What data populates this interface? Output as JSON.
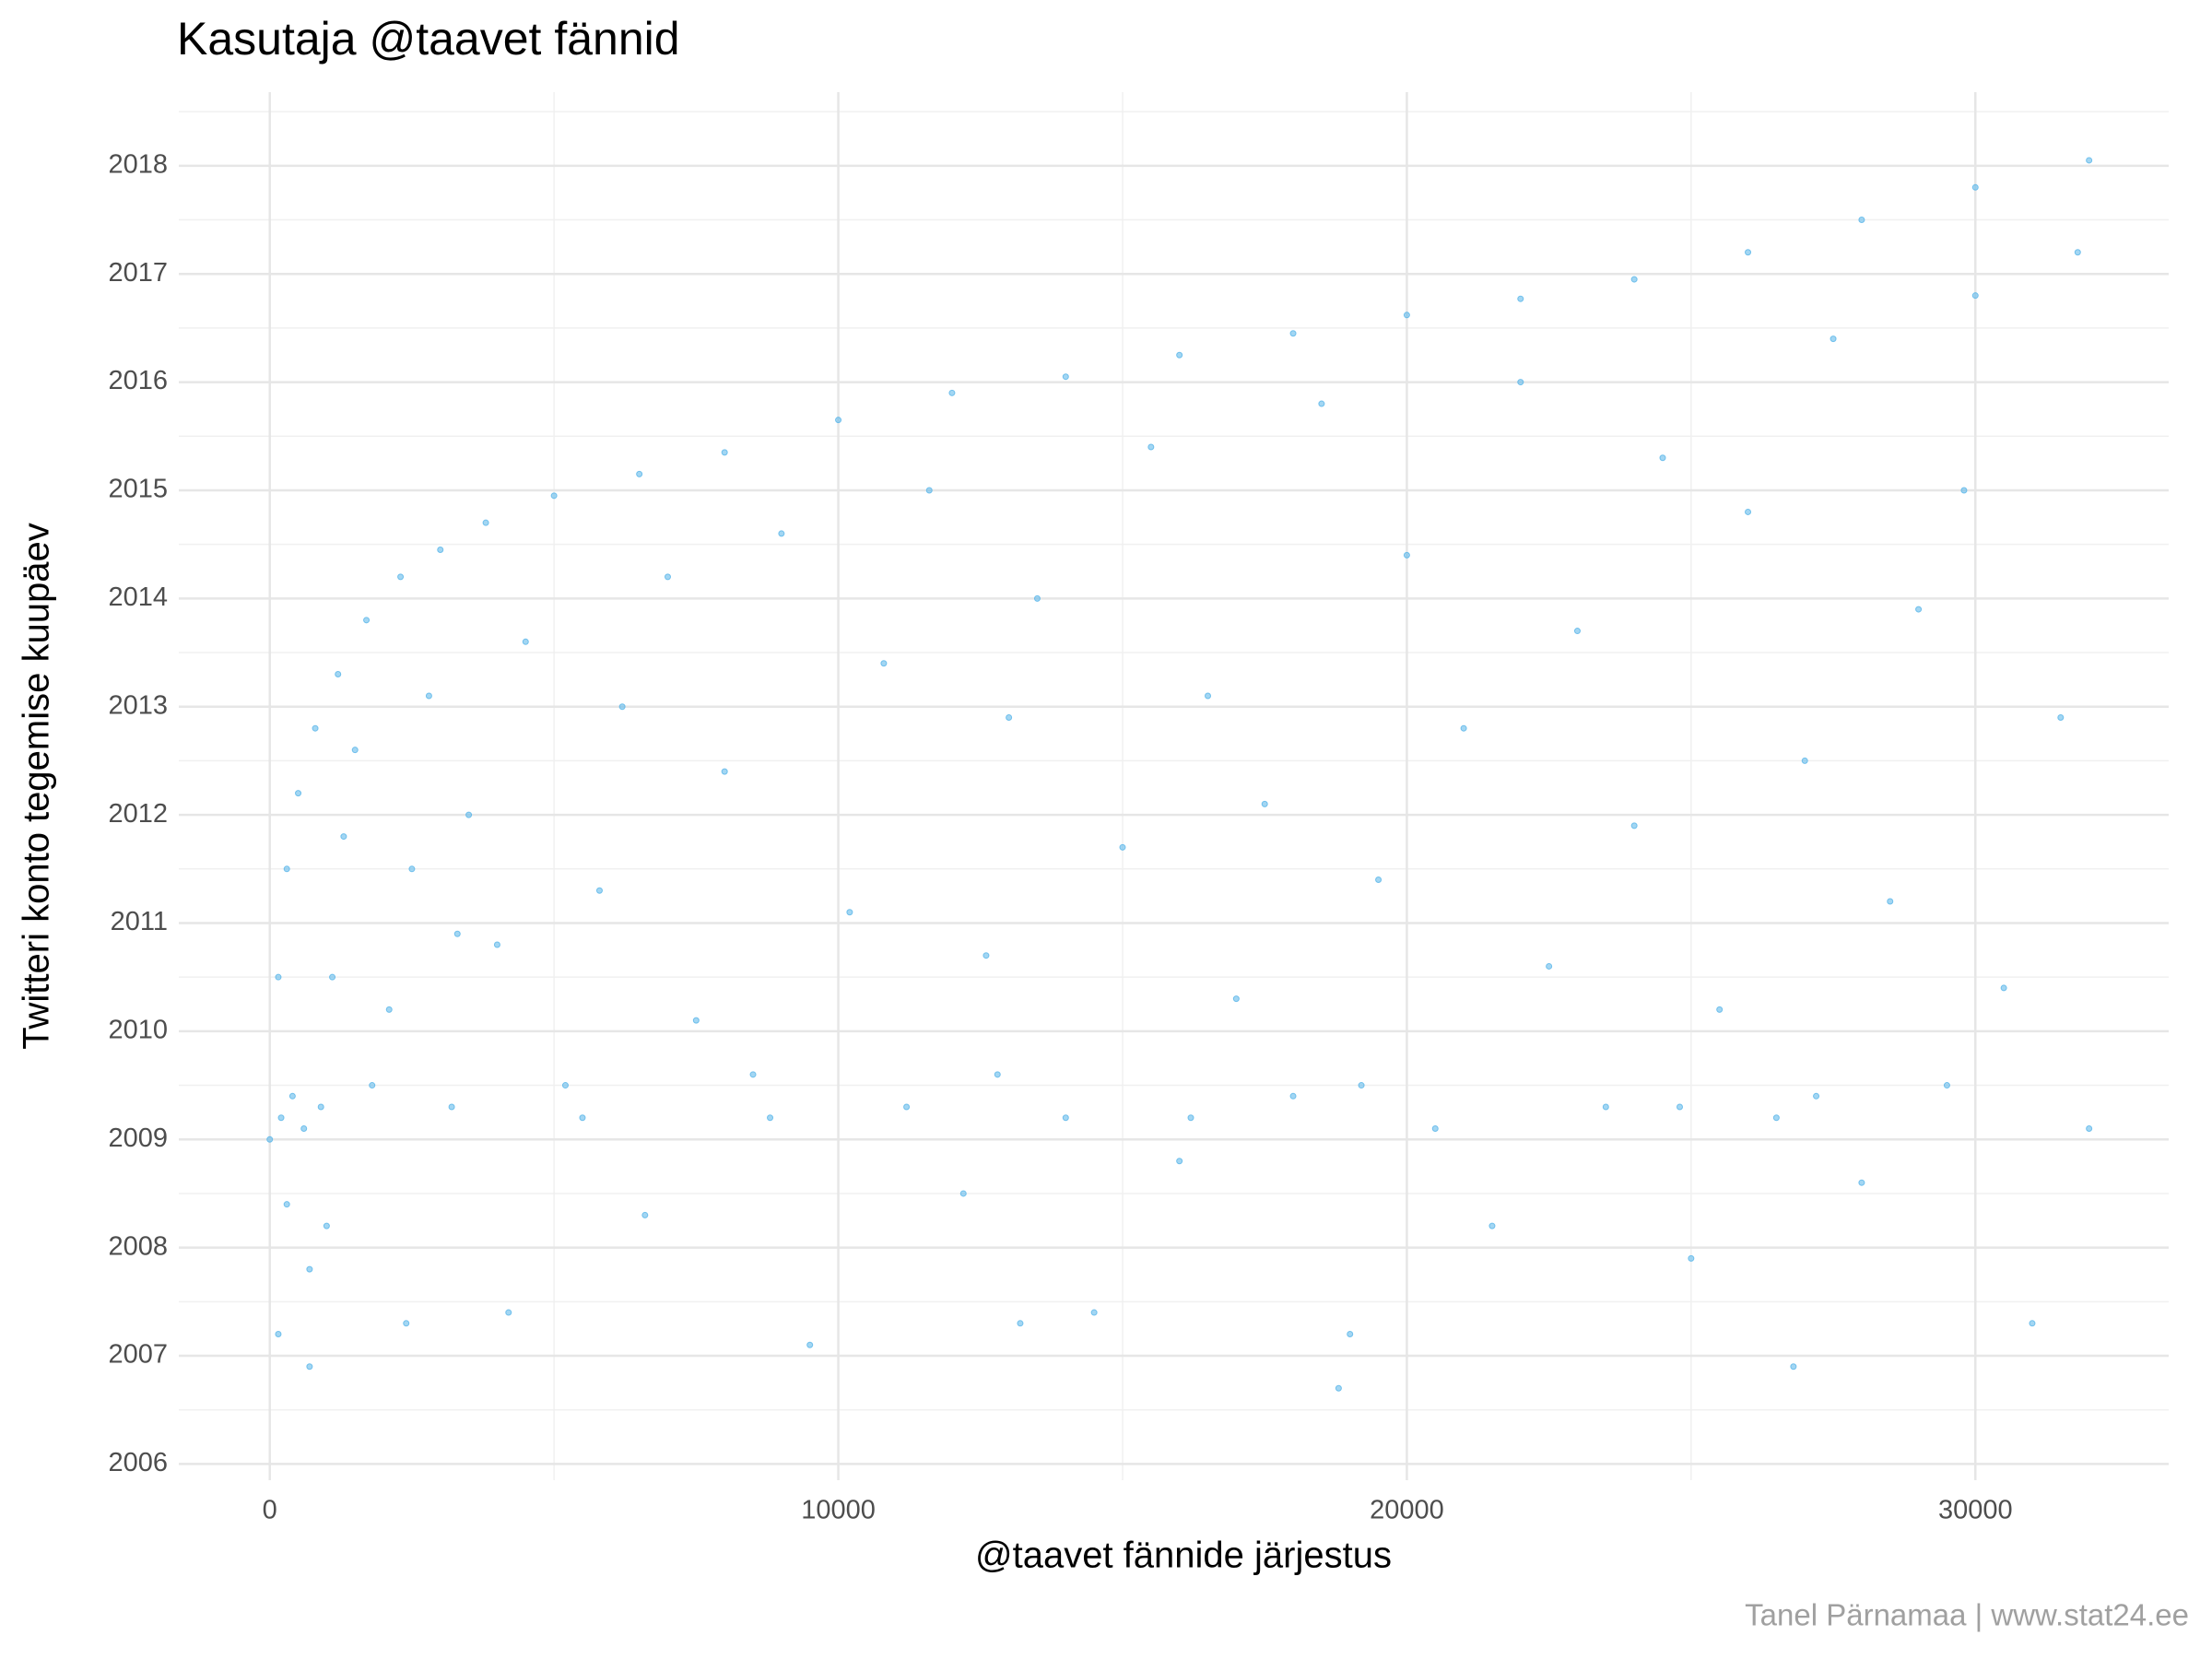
{
  "chart_data": {
    "type": "scatter",
    "title": "Kasutaja @taavet fännid",
    "x_label": "@taavet fännide järjestus",
    "y_label": "Twitteri konto tegemise kuupäev",
    "caption": "Tanel Pärnamaa | www.stat24.ee",
    "color": "#56b4e9",
    "grid": true,
    "xlim": [
      -1600,
      33400
    ],
    "xticks": [
      0,
      10000,
      20000,
      30000
    ],
    "xminor": [
      5000,
      15000,
      25000
    ],
    "ylim": [
      2005.85,
      2018.68
    ],
    "yticks": [
      2006,
      2007,
      2008,
      2009,
      2010,
      2011,
      2012,
      2013,
      2014,
      2015,
      2016,
      2017,
      2018
    ],
    "yminor": [
      2006.5,
      2007.5,
      2008.5,
      2009.5,
      2010.5,
      2011.5,
      2012.5,
      2013.5,
      2014.5,
      2015.5,
      2016.5,
      2017.5,
      2018.5
    ],
    "x": [
      0,
      150,
      300,
      500,
      800,
      1200,
      1700,
      2300,
      3000,
      3800,
      5000,
      6500,
      8000,
      10000,
      12000,
      14000,
      16000,
      18000,
      20000,
      22000,
      24000,
      26000,
      28000,
      30000,
      32000,
      200,
      400,
      600,
      900,
      1100,
      1300,
      1500,
      1800,
      2100,
      2500,
      2800,
      3200,
      3500,
      4000,
      4500,
      150,
      300,
      700,
      1000,
      2400,
      4200,
      5500,
      5800,
      6200,
      6600,
      7000,
      7500,
      8000,
      8500,
      9000,
      9500,
      10200,
      10800,
      11200,
      11600,
      12200,
      12600,
      13000,
      13500,
      14000,
      14500,
      15000,
      15500,
      16000,
      16500,
      17000,
      17500,
      18000,
      18500,
      19000,
      19500,
      20000,
      20500,
      21000,
      21500,
      22000,
      22500,
      23000,
      23500,
      24000,
      24500,
      25000,
      25500,
      26000,
      26500,
      27000,
      27500,
      28000,
      28500,
      29000,
      29500,
      30000,
      30500,
      31000,
      31500,
      32000,
      31800,
      29800,
      27200,
      24800,
      19200,
      16200,
      12800,
      8800,
      5200,
      13200,
      26800,
      18800,
      700,
      3300
    ],
    "values": [
      2009.0,
      2010.5,
      2011.5,
      2012.2,
      2012.8,
      2013.3,
      2013.8,
      2014.2,
      2014.45,
      2014.7,
      2014.95,
      2015.15,
      2015.35,
      2015.65,
      2015.9,
      2016.05,
      2016.25,
      2016.45,
      2016.62,
      2016.77,
      2016.95,
      2017.2,
      2017.5,
      2017.8,
      2018.05,
      2009.2,
      2009.4,
      2009.1,
      2009.3,
      2010.5,
      2011.8,
      2012.6,
      2009.5,
      2010.2,
      2011.5,
      2013.1,
      2009.3,
      2012.0,
      2010.8,
      2013.6,
      2007.2,
      2008.4,
      2007.8,
      2008.2,
      2007.3,
      2007.4,
      2009.2,
      2011.3,
      2013.0,
      2008.3,
      2014.2,
      2010.1,
      2012.4,
      2009.6,
      2014.6,
      2007.1,
      2011.1,
      2013.4,
      2009.3,
      2015.0,
      2008.5,
      2010.7,
      2012.9,
      2014.0,
      2009.2,
      2007.4,
      2011.7,
      2015.4,
      2008.8,
      2013.1,
      2010.3,
      2012.1,
      2009.4,
      2015.8,
      2007.2,
      2011.4,
      2014.4,
      2009.1,
      2012.8,
      2008.2,
      2016.0,
      2010.6,
      2013.7,
      2009.3,
      2011.9,
      2015.3,
      2007.9,
      2010.2,
      2014.8,
      2009.2,
      2012.5,
      2016.4,
      2008.6,
      2011.2,
      2013.9,
      2009.5,
      2016.8,
      2010.4,
      2007.3,
      2012.9,
      2009.1,
      2017.2,
      2015.0,
      2009.4,
      2009.3,
      2009.5,
      2009.2,
      2009.6,
      2009.2,
      2009.5,
      2007.3,
      2006.9,
      2006.7,
      2006.9,
      2010.9
    ]
  }
}
